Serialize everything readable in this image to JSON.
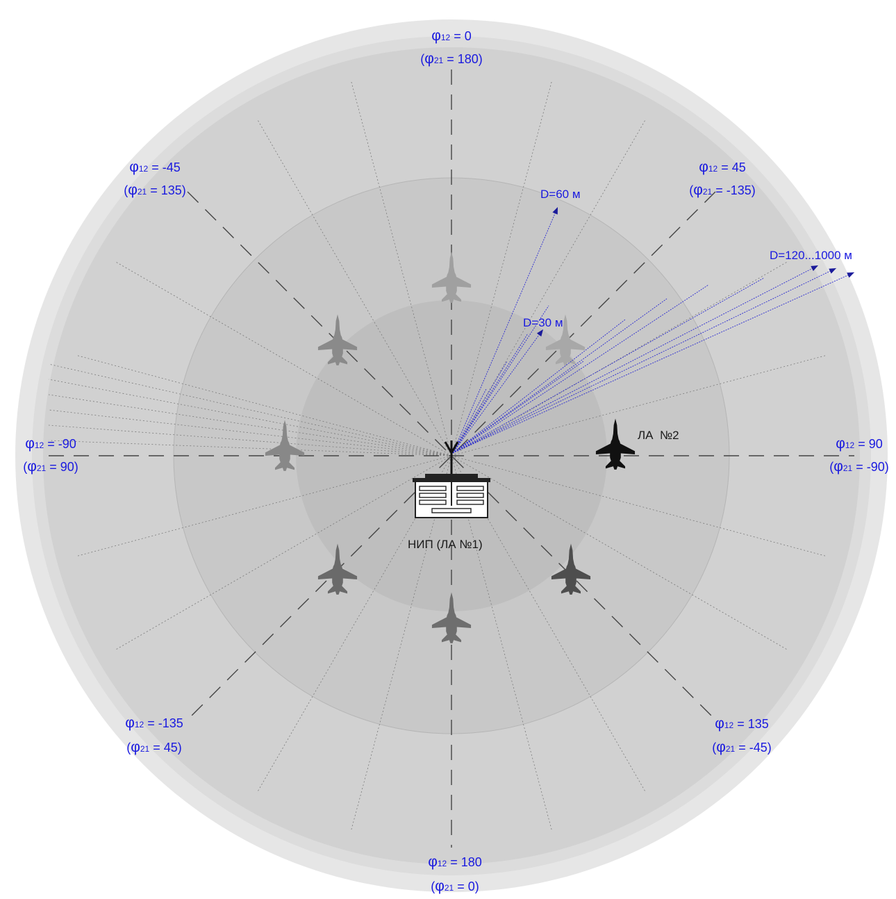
{
  "colors": {
    "label": "#1a1adf",
    "arrow": "#2b2bd0",
    "ring_outer": "#e6e6e6",
    "ring_2": "#d9d9d9",
    "ring_3": "#cecece",
    "ring_4": "#c4c4c4",
    "ring_5": "#b9b9b9",
    "aircraft_ghost": "#8f8f8f",
    "aircraft_main": "#111111"
  },
  "angle_labels": [
    {
      "id": "n",
      "phi12": "0",
      "phi21": "180"
    },
    {
      "id": "ne",
      "phi12": "45",
      "phi21": "-135"
    },
    {
      "id": "e",
      "phi12": "90",
      "phi21": "-90"
    },
    {
      "id": "se",
      "phi12": "135",
      "phi21": "-45"
    },
    {
      "id": "s",
      "phi12": "180",
      "phi21": "0"
    },
    {
      "id": "sw",
      "phi12": "-135",
      "phi21": "45"
    },
    {
      "id": "w",
      "phi12": "-90",
      "phi21": "90"
    },
    {
      "id": "nw",
      "phi12": "-45",
      "phi21": "135"
    }
  ],
  "phi_symbol": "φ",
  "sub12": "12",
  "sub21": "21",
  "distance_labels": {
    "d30": "D=30 м",
    "d60": "D=60 м",
    "d120": "D=120...1000 м"
  },
  "station_label": "НИП (ЛА №1)",
  "aircraft2_label": "ЛА  №2",
  "icons": {
    "station": "ground-station-building-icon",
    "antenna": "antenna-icon",
    "aircraft": "fighter-jet-icon"
  }
}
